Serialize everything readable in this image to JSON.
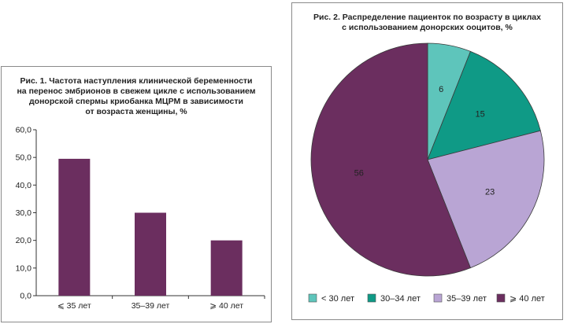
{
  "chart_data": [
    {
      "type": "bar",
      "title": "Рис. 1. Частота наступления клинической беременности\nна перенос эмбрионов в свежем цикле с использованием\nдонорской спермы криобанка МЦРМ в зависимости\nот возраста женщины, %",
      "categories": [
        "⩽ 35 лет",
        "35–39 лет",
        "⩾ 40 лет"
      ],
      "values": [
        49.5,
        30.0,
        20.0
      ],
      "ylim": [
        0,
        60
      ],
      "yticks": [
        "0,0",
        "10,0",
        "20,0",
        "30,0",
        "40,0",
        "50,0",
        "60,0"
      ],
      "xlabel": "",
      "ylabel": "",
      "grid": false,
      "colors": {
        "bar": "#6b2e5f"
      }
    },
    {
      "type": "pie",
      "title": "Рис. 2. Распределение пациенток по возрасту в циклах\nс использованием донорских ооцитов, %",
      "labels": [
        "< 30 лет",
        "30–34 лет",
        "35–39 лет",
        "⩾ 40 лет"
      ],
      "values": [
        6,
        15,
        23,
        56
      ],
      "value_labels": [
        "6",
        "15",
        "23",
        "56"
      ],
      "colors": [
        "#5ec5bb",
        "#0f9a86",
        "#b9a5d4",
        "#6b2e5f"
      ],
      "legend_position": "bottom"
    }
  ]
}
